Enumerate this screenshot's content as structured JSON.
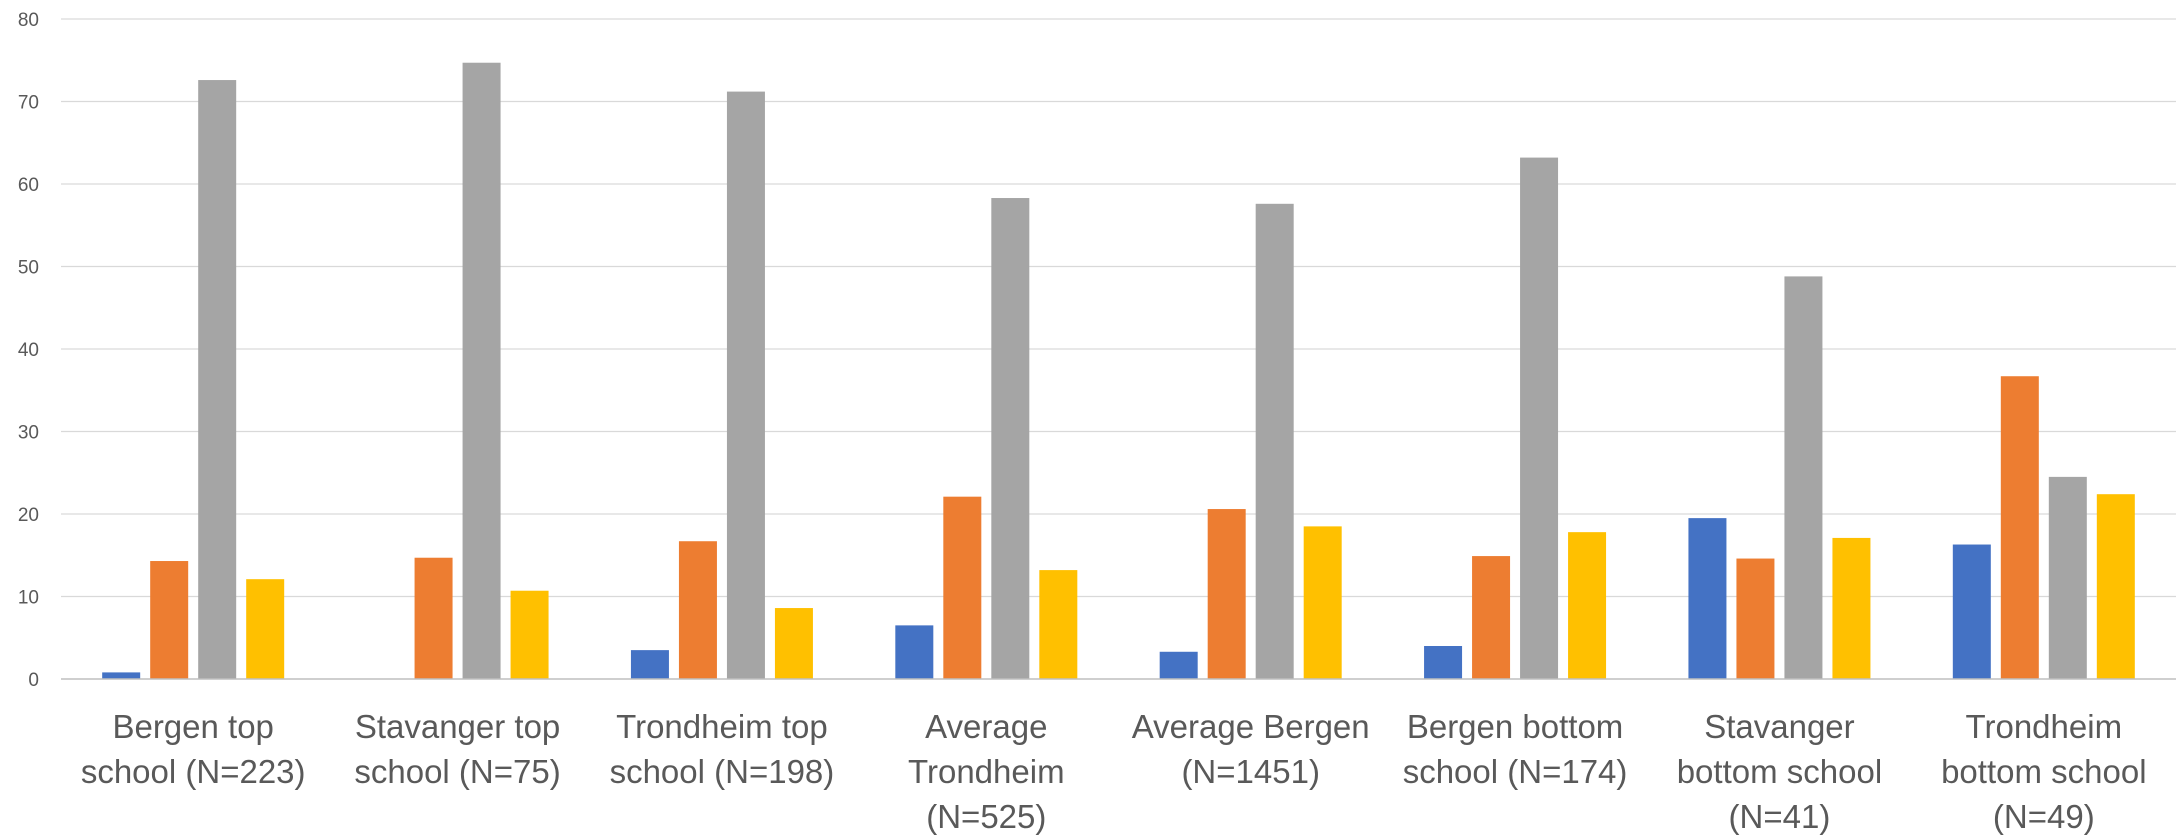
{
  "chart_data": {
    "type": "bar",
    "title": "",
    "xlabel": "",
    "ylabel": "",
    "ylim": [
      0,
      80
    ],
    "yticks": [
      0,
      10,
      20,
      30,
      40,
      50,
      60,
      70,
      80
    ],
    "grid": true,
    "legend": "none",
    "categories": [
      [
        "Bergen top",
        "school (N=223)"
      ],
      [
        "Stavanger top",
        "school (N=75)"
      ],
      [
        "Trondheim top",
        "school (N=198)"
      ],
      [
        "Average",
        "Trondheim",
        "(N=525)"
      ],
      [
        "Average Bergen",
        "(N=1451)"
      ],
      [
        "Bergen bottom",
        "school (N=174)"
      ],
      [
        "Stavanger",
        "bottom school",
        "(N=41)"
      ],
      [
        "Trondheim",
        "bottom school",
        "(N=49)"
      ]
    ],
    "series": [
      {
        "color": "#4472C4",
        "values": [
          0.8,
          0,
          3.5,
          6.5,
          3.3,
          4.0,
          19.5,
          16.3
        ]
      },
      {
        "color": "#ED7D31",
        "values": [
          14.3,
          14.7,
          16.7,
          22.1,
          20.6,
          14.9,
          14.6,
          36.7
        ]
      },
      {
        "color": "#A5A5A5",
        "values": [
          72.6,
          74.7,
          71.2,
          58.3,
          57.6,
          63.2,
          48.8,
          24.5
        ]
      },
      {
        "color": "#FFC000",
        "values": [
          12.1,
          10.7,
          8.6,
          13.2,
          18.5,
          17.8,
          17.1,
          22.4
        ]
      }
    ],
    "gridColor": "#D9D9D9",
    "axisColor": "#BFBFBF"
  }
}
